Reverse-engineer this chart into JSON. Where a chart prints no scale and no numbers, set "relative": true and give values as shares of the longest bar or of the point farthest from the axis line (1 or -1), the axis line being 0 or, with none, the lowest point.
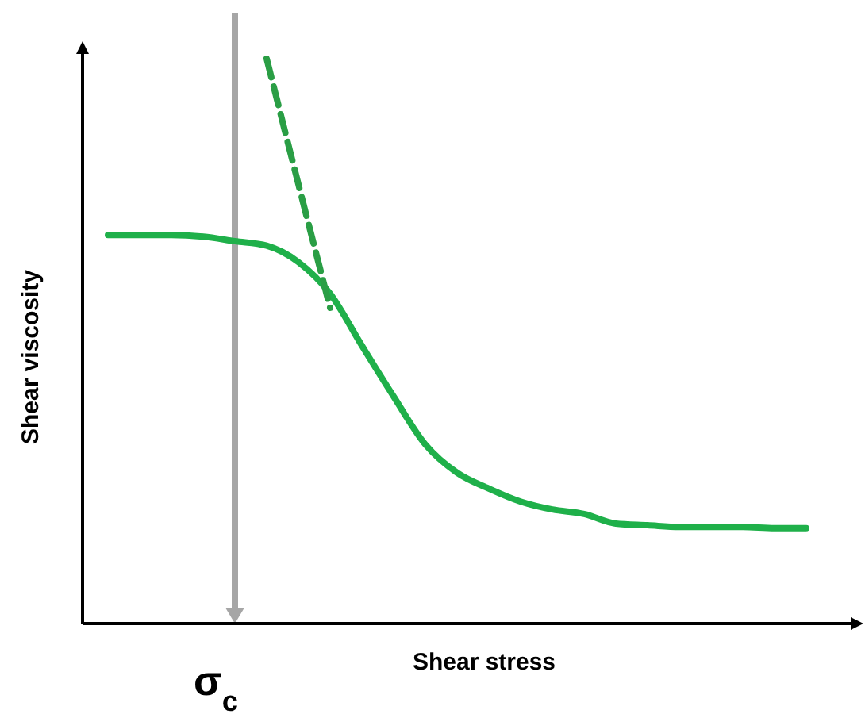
{
  "chart_data": {
    "type": "line",
    "relative": true,
    "xlabel": "Shear stress",
    "ylabel": "Shear viscosity",
    "categories": [
      null,
      null,
      null,
      null,
      null,
      null,
      null,
      null,
      null,
      null,
      null,
      null,
      null,
      null,
      null,
      null,
      null,
      null,
      null,
      null,
      null,
      null,
      null
    ],
    "series": [
      {
        "color": "#1fb04a",
        "line_style": "solid",
        "values": [
          0.688,
          0.688,
          0.688,
          0.685,
          0.677,
          0.669,
          0.64,
          0.584,
          0.492,
          0.402,
          0.317,
          0.267,
          0.239,
          0.216,
          0.202,
          0.194,
          0.177,
          0.174,
          0.171,
          0.171,
          0.171,
          0.169,
          0.169
        ]
      },
      {
        "color": "#2a9e45",
        "line_style": "dashed",
        "values": [
          null,
          null,
          null,
          null,
          null,
          1,
          0.778,
          0.559,
          null,
          null,
          null,
          null,
          null,
          null,
          null,
          null,
          null,
          null,
          null,
          null,
          null,
          null,
          null
        ]
      }
    ],
    "annotations": [
      "σ$_{c}$"
    ]
  }
}
